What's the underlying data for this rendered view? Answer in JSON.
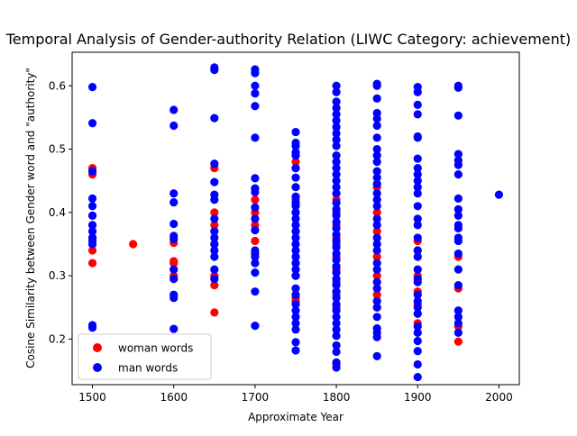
{
  "chart_data": {
    "type": "scatter",
    "title": "Temporal Analysis of Gender-authority Relation (LIWC Category: achievement)",
    "xlabel": "Approximate Year",
    "ylabel": "Cosine Similarity between Gender word and \"authority\"",
    "xlim": [
      1475,
      2025
    ],
    "ylim": [
      0.128,
      0.653
    ],
    "x_ticks": [
      1500,
      1600,
      1700,
      1800,
      1900,
      2000
    ],
    "x_tick_labels": [
      "1500",
      "1600",
      "1700",
      "1800",
      "1900",
      "2000"
    ],
    "y_ticks": [
      0.2,
      0.3,
      0.4,
      0.5,
      0.6
    ],
    "y_tick_labels": [
      "0.2",
      "0.3",
      "0.4",
      "0.5",
      "0.6"
    ],
    "legend_position": "lower-left",
    "series": [
      {
        "name": "woman words",
        "color": "#ff0000",
        "points": [
          [
            1500,
            0.47
          ],
          [
            1500,
            0.46
          ],
          [
            1500,
            0.395
          ],
          [
            1500,
            0.38
          ],
          [
            1500,
            0.36
          ],
          [
            1500,
            0.34
          ],
          [
            1500,
            0.32
          ],
          [
            1550,
            0.35
          ],
          [
            1600,
            0.352
          ],
          [
            1600,
            0.323
          ],
          [
            1600,
            0.32
          ],
          [
            1600,
            0.3
          ],
          [
            1650,
            0.47
          ],
          [
            1650,
            0.4
          ],
          [
            1650,
            0.38
          ],
          [
            1650,
            0.35
          ],
          [
            1650,
            0.3
          ],
          [
            1650,
            0.285
          ],
          [
            1650,
            0.242
          ],
          [
            1700,
            0.42
          ],
          [
            1700,
            0.4
          ],
          [
            1700,
            0.38
          ],
          [
            1700,
            0.355
          ],
          [
            1700,
            0.335
          ],
          [
            1700,
            0.32
          ],
          [
            1750,
            0.48
          ],
          [
            1750,
            0.47
          ],
          [
            1750,
            0.42
          ],
          [
            1750,
            0.4
          ],
          [
            1750,
            0.37
          ],
          [
            1750,
            0.32
          ],
          [
            1750,
            0.3
          ],
          [
            1750,
            0.265
          ],
          [
            1750,
            0.26
          ],
          [
            1800,
            0.43
          ],
          [
            1800,
            0.42
          ],
          [
            1800,
            0.4
          ],
          [
            1800,
            0.38
          ],
          [
            1800,
            0.36
          ],
          [
            1800,
            0.35
          ],
          [
            1800,
            0.33
          ],
          [
            1800,
            0.31
          ],
          [
            1800,
            0.29
          ],
          [
            1800,
            0.27
          ],
          [
            1800,
            0.25
          ],
          [
            1800,
            0.16
          ],
          [
            1850,
            0.44
          ],
          [
            1850,
            0.4
          ],
          [
            1850,
            0.37
          ],
          [
            1850,
            0.33
          ],
          [
            1850,
            0.3
          ],
          [
            1850,
            0.27
          ],
          [
            1850,
            0.25
          ],
          [
            1900,
            0.355
          ],
          [
            1900,
            0.34
          ],
          [
            1900,
            0.3
          ],
          [
            1900,
            0.275
          ],
          [
            1900,
            0.255
          ],
          [
            1900,
            0.24
          ],
          [
            1900,
            0.225
          ],
          [
            1950,
            0.33
          ],
          [
            1950,
            0.28
          ],
          [
            1950,
            0.22
          ],
          [
            1950,
            0.196
          ]
        ]
      },
      {
        "name": "man words",
        "color": "#0000ff",
        "points": [
          [
            1500,
            0.598
          ],
          [
            1500,
            0.541
          ],
          [
            1500,
            0.465
          ],
          [
            1500,
            0.422
          ],
          [
            1500,
            0.41
          ],
          [
            1500,
            0.395
          ],
          [
            1500,
            0.38
          ],
          [
            1500,
            0.37
          ],
          [
            1500,
            0.36
          ],
          [
            1500,
            0.355
          ],
          [
            1500,
            0.35
          ],
          [
            1500,
            0.222
          ],
          [
            1500,
            0.218
          ],
          [
            1600,
            0.562
          ],
          [
            1600,
            0.537
          ],
          [
            1600,
            0.43
          ],
          [
            1600,
            0.416
          ],
          [
            1600,
            0.382
          ],
          [
            1600,
            0.363
          ],
          [
            1600,
            0.358
          ],
          [
            1600,
            0.31
          ],
          [
            1600,
            0.295
          ],
          [
            1600,
            0.27
          ],
          [
            1600,
            0.265
          ],
          [
            1600,
            0.216
          ],
          [
            1650,
            0.629
          ],
          [
            1650,
            0.625
          ],
          [
            1650,
            0.549
          ],
          [
            1650,
            0.477
          ],
          [
            1650,
            0.448
          ],
          [
            1650,
            0.428
          ],
          [
            1650,
            0.42
          ],
          [
            1650,
            0.39
          ],
          [
            1650,
            0.37
          ],
          [
            1650,
            0.36
          ],
          [
            1650,
            0.35
          ],
          [
            1650,
            0.34
          ],
          [
            1650,
            0.33
          ],
          [
            1650,
            0.31
          ],
          [
            1650,
            0.295
          ],
          [
            1700,
            0.626
          ],
          [
            1700,
            0.62
          ],
          [
            1700,
            0.6
          ],
          [
            1700,
            0.588
          ],
          [
            1700,
            0.568
          ],
          [
            1700,
            0.518
          ],
          [
            1700,
            0.454
          ],
          [
            1700,
            0.438
          ],
          [
            1700,
            0.432
          ],
          [
            1700,
            0.408
          ],
          [
            1700,
            0.39
          ],
          [
            1700,
            0.372
          ],
          [
            1700,
            0.34
          ],
          [
            1700,
            0.335
          ],
          [
            1700,
            0.33
          ],
          [
            1700,
            0.32
          ],
          [
            1700,
            0.305
          ],
          [
            1700,
            0.275
          ],
          [
            1700,
            0.221
          ],
          [
            1750,
            0.527
          ],
          [
            1750,
            0.51
          ],
          [
            1750,
            0.505
          ],
          [
            1750,
            0.495
          ],
          [
            1750,
            0.49
          ],
          [
            1750,
            0.47
          ],
          [
            1750,
            0.455
          ],
          [
            1750,
            0.44
          ],
          [
            1750,
            0.425
          ],
          [
            1750,
            0.415
          ],
          [
            1750,
            0.41
          ],
          [
            1750,
            0.4
          ],
          [
            1750,
            0.39
          ],
          [
            1750,
            0.38
          ],
          [
            1750,
            0.37
          ],
          [
            1750,
            0.36
          ],
          [
            1750,
            0.35
          ],
          [
            1750,
            0.34
          ],
          [
            1750,
            0.33
          ],
          [
            1750,
            0.32
          ],
          [
            1750,
            0.31
          ],
          [
            1750,
            0.3
          ],
          [
            1750,
            0.28
          ],
          [
            1750,
            0.27
          ],
          [
            1750,
            0.255
          ],
          [
            1750,
            0.245
          ],
          [
            1750,
            0.235
          ],
          [
            1750,
            0.225
          ],
          [
            1750,
            0.215
          ],
          [
            1750,
            0.195
          ],
          [
            1750,
            0.182
          ],
          [
            1800,
            0.6
          ],
          [
            1800,
            0.59
          ],
          [
            1800,
            0.575
          ],
          [
            1800,
            0.565
          ],
          [
            1800,
            0.555
          ],
          [
            1800,
            0.545
          ],
          [
            1800,
            0.535
          ],
          [
            1800,
            0.525
          ],
          [
            1800,
            0.515
          ],
          [
            1800,
            0.505
          ],
          [
            1800,
            0.49
          ],
          [
            1800,
            0.48
          ],
          [
            1800,
            0.47
          ],
          [
            1800,
            0.46
          ],
          [
            1800,
            0.45
          ],
          [
            1800,
            0.44
          ],
          [
            1800,
            0.43
          ],
          [
            1800,
            0.415
          ],
          [
            1800,
            0.405
          ],
          [
            1800,
            0.395
          ],
          [
            1800,
            0.385
          ],
          [
            1800,
            0.375
          ],
          [
            1800,
            0.365
          ],
          [
            1800,
            0.355
          ],
          [
            1800,
            0.345
          ],
          [
            1800,
            0.335
          ],
          [
            1800,
            0.325
          ],
          [
            1800,
            0.315
          ],
          [
            1800,
            0.305
          ],
          [
            1800,
            0.295
          ],
          [
            1800,
            0.285
          ],
          [
            1800,
            0.275
          ],
          [
            1800,
            0.265
          ],
          [
            1800,
            0.255
          ],
          [
            1800,
            0.245
          ],
          [
            1800,
            0.235
          ],
          [
            1800,
            0.225
          ],
          [
            1800,
            0.215
          ],
          [
            1800,
            0.205
          ],
          [
            1800,
            0.19
          ],
          [
            1800,
            0.18
          ],
          [
            1800,
            0.163
          ],
          [
            1800,
            0.155
          ],
          [
            1850,
            0.603
          ],
          [
            1850,
            0.6
          ],
          [
            1850,
            0.58
          ],
          [
            1850,
            0.557
          ],
          [
            1850,
            0.548
          ],
          [
            1850,
            0.537
          ],
          [
            1850,
            0.518
          ],
          [
            1850,
            0.5
          ],
          [
            1850,
            0.49
          ],
          [
            1850,
            0.48
          ],
          [
            1850,
            0.465
          ],
          [
            1850,
            0.455
          ],
          [
            1850,
            0.445
          ],
          [
            1850,
            0.43
          ],
          [
            1850,
            0.42
          ],
          [
            1850,
            0.41
          ],
          [
            1850,
            0.39
          ],
          [
            1850,
            0.38
          ],
          [
            1850,
            0.36
          ],
          [
            1850,
            0.35
          ],
          [
            1850,
            0.34
          ],
          [
            1850,
            0.32
          ],
          [
            1850,
            0.31
          ],
          [
            1850,
            0.29
          ],
          [
            1850,
            0.28
          ],
          [
            1850,
            0.26
          ],
          [
            1850,
            0.25
          ],
          [
            1850,
            0.235
          ],
          [
            1850,
            0.217
          ],
          [
            1850,
            0.21
          ],
          [
            1850,
            0.203
          ],
          [
            1850,
            0.173
          ],
          [
            1900,
            0.598
          ],
          [
            1900,
            0.59
          ],
          [
            1900,
            0.57
          ],
          [
            1900,
            0.555
          ],
          [
            1900,
            0.52
          ],
          [
            1900,
            0.518
          ],
          [
            1900,
            0.485
          ],
          [
            1900,
            0.47
          ],
          [
            1900,
            0.46
          ],
          [
            1900,
            0.45
          ],
          [
            1900,
            0.44
          ],
          [
            1900,
            0.43
          ],
          [
            1900,
            0.41
          ],
          [
            1900,
            0.39
          ],
          [
            1900,
            0.38
          ],
          [
            1900,
            0.36
          ],
          [
            1900,
            0.34
          ],
          [
            1900,
            0.33
          ],
          [
            1900,
            0.31
          ],
          [
            1900,
            0.295
          ],
          [
            1900,
            0.29
          ],
          [
            1900,
            0.27
          ],
          [
            1900,
            0.26
          ],
          [
            1900,
            0.25
          ],
          [
            1900,
            0.24
          ],
          [
            1900,
            0.22
          ],
          [
            1900,
            0.21
          ],
          [
            1900,
            0.197
          ],
          [
            1900,
            0.181
          ],
          [
            1900,
            0.16
          ],
          [
            1900,
            0.14
          ],
          [
            1950,
            0.6
          ],
          [
            1950,
            0.597
          ],
          [
            1950,
            0.553
          ],
          [
            1950,
            0.492
          ],
          [
            1950,
            0.482
          ],
          [
            1950,
            0.475
          ],
          [
            1950,
            0.46
          ],
          [
            1950,
            0.422
          ],
          [
            1950,
            0.405
          ],
          [
            1950,
            0.395
          ],
          [
            1950,
            0.38
          ],
          [
            1950,
            0.375
          ],
          [
            1950,
            0.36
          ],
          [
            1950,
            0.355
          ],
          [
            1950,
            0.335
          ],
          [
            1950,
            0.31
          ],
          [
            1950,
            0.285
          ],
          [
            1950,
            0.245
          ],
          [
            1950,
            0.235
          ],
          [
            1950,
            0.225
          ],
          [
            1950,
            0.21
          ],
          [
            2000,
            0.428
          ]
        ]
      }
    ]
  }
}
